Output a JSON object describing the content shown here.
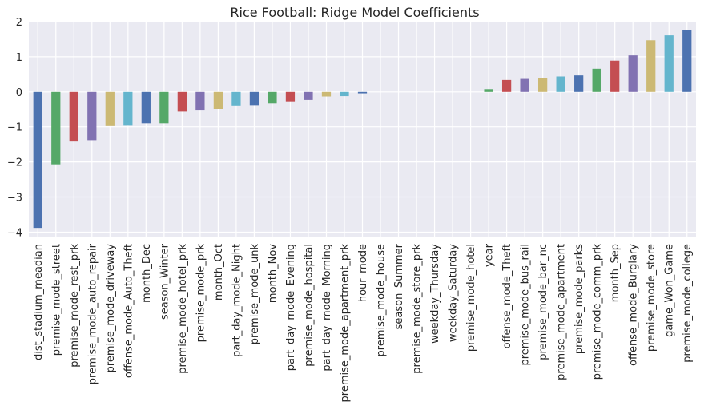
{
  "chart_data": {
    "type": "bar",
    "title": "Rice Football: Ridge Model Coefficients",
    "xlabel": "",
    "ylabel": "",
    "ylim": [
      -4.15,
      2.0
    ],
    "yticks": [
      -4,
      -3,
      -2,
      -1,
      0,
      1,
      2
    ],
    "grid": true,
    "legend": "none",
    "background": "#eaeaf2",
    "grid_color": "#ffffff",
    "palette": [
      "#4c72b0",
      "#55a868",
      "#c44e52",
      "#8172b2",
      "#ccb974",
      "#64b5cd"
    ],
    "categories": [
      "dist_stadium_meadian",
      "premise_mode_street",
      "premise_mode_rest_prk",
      "premise_mode_auto_repair",
      "premise_mode_driveway",
      "offense_mode_Auto_Theft",
      "month_Dec",
      "season_Winter",
      "premise_mode_hotel_prk",
      "premise_mode_prk",
      "month_Oct",
      "part_day_mode_Night",
      "premise_mode_unk",
      "month_Nov",
      "part_day_mode_Evening",
      "premise_mode_hospital",
      "part_day_mode_Morning",
      "premise_mode_apartment_prk",
      "hour_mode",
      "premise_mode_house",
      "season_Summer",
      "premise_mode_store_prk",
      "weekday_Thursday",
      "weekday_Saturday",
      "premise_mode_hotel",
      "year",
      "offense_mode_Theft",
      "premise_mode_bus_rail",
      "premise_mode_bar_nc",
      "premise_mode_apartment",
      "premise_mode_parks",
      "premise_mode_comm_prk",
      "month_Sep",
      "offense_mode_Burglary",
      "premise_mode_store",
      "game_Won_Game",
      "premise_mode_college"
    ],
    "values": [
      -3.88,
      -2.07,
      -1.42,
      -1.38,
      -0.98,
      -0.97,
      -0.9,
      -0.9,
      -0.56,
      -0.53,
      -0.49,
      -0.41,
      -0.4,
      -0.33,
      -0.27,
      -0.23,
      -0.13,
      -0.12,
      -0.04,
      0.0,
      0.0,
      0.0,
      0.0,
      0.0,
      0.0,
      0.08,
      0.34,
      0.37,
      0.4,
      0.44,
      0.47,
      0.66,
      0.89,
      1.04,
      1.47,
      1.61,
      1.76
    ]
  }
}
